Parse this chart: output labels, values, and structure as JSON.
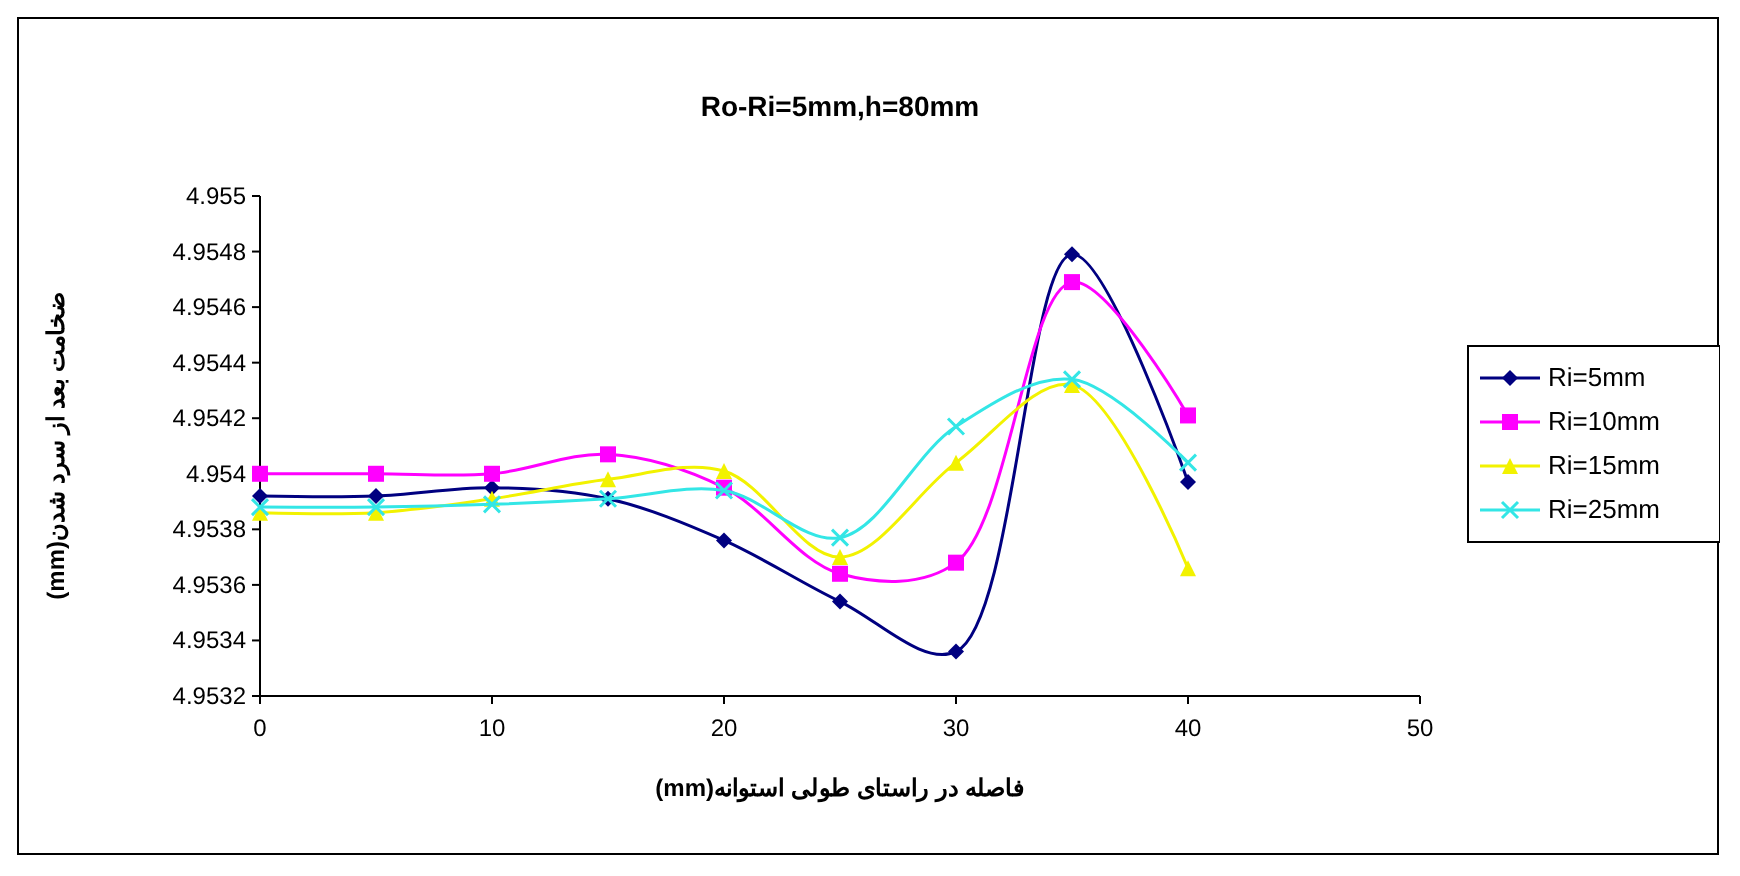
{
  "chart_data": {
    "type": "line",
    "title": "Ro-Ri=5mm,h=80mm",
    "xlabel": "فاصله در راستای طولی استوانه(mm)",
    "ylabel": "ضخامت بعد از سرد شدن(mm)",
    "x": [
      0,
      5,
      10,
      15,
      20,
      25,
      30,
      35,
      40
    ],
    "xlim": [
      0,
      50
    ],
    "xticks": [
      0,
      10,
      20,
      30,
      40,
      50
    ],
    "ylim": [
      4.9532,
      4.955
    ],
    "yticks": [
      4.9532,
      4.9534,
      4.9536,
      4.9538,
      4.954,
      4.9542,
      4.9544,
      4.9546,
      4.9548,
      4.955
    ],
    "grid": false,
    "legend": "right",
    "series": [
      {
        "name": "Ri=5mm",
        "color": "#000080",
        "marker": "diamond",
        "values": [
          4.95392,
          4.95392,
          4.95395,
          4.95391,
          4.95376,
          4.95354,
          4.95336,
          4.95479,
          4.95397
        ]
      },
      {
        "name": "Ri=10mm",
        "color": "#ff00ff",
        "marker": "square",
        "values": [
          4.954,
          4.954,
          4.954,
          4.95407,
          4.95395,
          4.95364,
          4.95368,
          4.95469,
          4.95421
        ]
      },
      {
        "name": "Ri=15mm",
        "color": "#f2f200",
        "marker": "triangle",
        "values": [
          4.95386,
          4.95386,
          4.95391,
          4.95398,
          4.95401,
          4.9537,
          4.95404,
          4.95432,
          4.95366
        ]
      },
      {
        "name": "Ri=25mm",
        "color": "#33e6e6",
        "marker": "cross",
        "values": [
          4.95388,
          4.95388,
          4.95389,
          4.95391,
          4.95394,
          4.95377,
          4.95417,
          4.95434,
          4.95404
        ]
      }
    ]
  }
}
